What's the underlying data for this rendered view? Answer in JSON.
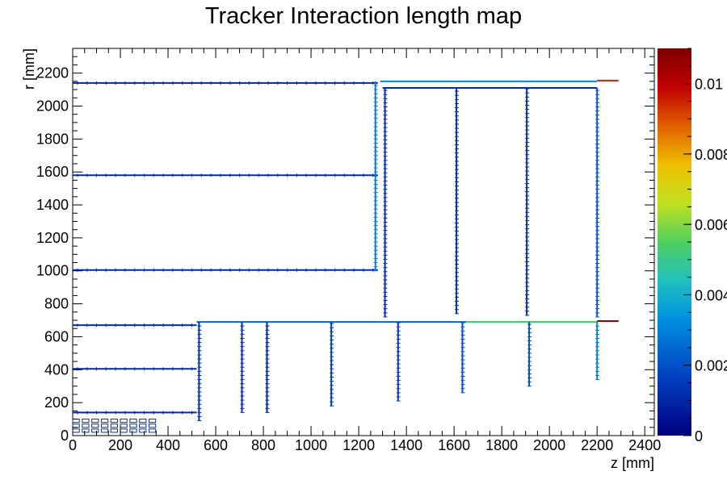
{
  "chart_data": {
    "type": "heatmap",
    "title": "Tracker Interaction length map",
    "xlabel": "z [mm]",
    "ylabel": "r [mm]",
    "xlim": [
      0,
      2440
    ],
    "ylim": [
      0,
      2350
    ],
    "x_ticks": [
      "0",
      "200",
      "400",
      "600",
      "800",
      "1000",
      "1200",
      "1400",
      "1600",
      "1800",
      "2000",
      "2200",
      "2400"
    ],
    "y_ticks": [
      "0",
      "200",
      "400",
      "600",
      "800",
      "1000",
      "1200",
      "1400",
      "1600",
      "1800",
      "2000",
      "2200"
    ],
    "colorbar": {
      "range": [
        0,
        0.011
      ],
      "tick_labels": [
        "0",
        "0.002",
        "0.004",
        "0.006",
        "0.008",
        "0.01"
      ],
      "tick_values": [
        0,
        0.002,
        0.004,
        0.006,
        0.008,
        0.01
      ],
      "colormap": "rainbow (dark blue to dark red)"
    },
    "structures": {
      "barrel_layers": [
        {
          "z": [
            0,
            1280
          ],
          "r": 2140,
          "value": 0.001
        },
        {
          "z": [
            0,
            1280
          ],
          "r": 1580,
          "value": 0.0012
        },
        {
          "z": [
            0,
            1280
          ],
          "r": 1005,
          "value": 0.001
        },
        {
          "z": [
            0,
            520
          ],
          "r": 670,
          "value": 0.0012
        },
        {
          "z": [
            0,
            520
          ],
          "r": 405,
          "value": 0.001
        },
        {
          "z": [
            0,
            520
          ],
          "r": 140,
          "value": 0.001
        }
      ],
      "outer_support": [
        {
          "z": [
            1290,
            2200
          ],
          "r": 2150,
          "value": 0.0032
        },
        {
          "z": [
            1300,
            2200
          ],
          "r": 2110,
          "value": 0.001
        },
        {
          "z": [
            2200,
            2290
          ],
          "r": 2155,
          "value": 0.0095
        },
        {
          "z": [
            520,
            2200
          ],
          "r": 690,
          "value": 0.0025
        },
        {
          "z": [
            1650,
            2200
          ],
          "r": 690,
          "value": 0.0055
        },
        {
          "z": [
            2200,
            2290
          ],
          "r": 695,
          "value": 0.0105
        }
      ],
      "endcap_disks": [
        {
          "z": 1270,
          "r": [
            1000,
            2150
          ],
          "value": 0.003
        },
        {
          "z": 1310,
          "r": [
            720,
            2110
          ],
          "value": 0.0012
        },
        {
          "z": 1610,
          "r": [
            740,
            2110
          ],
          "value": 0.0012
        },
        {
          "z": 1905,
          "r": [
            730,
            2110
          ],
          "value": 0.0012
        },
        {
          "z": 2200,
          "r": [
            720,
            2110
          ],
          "value": 0.0022
        },
        {
          "z": 530,
          "r": [
            90,
            690
          ],
          "value": 0.0012
        },
        {
          "z": 710,
          "r": [
            140,
            690
          ],
          "value": 0.0012
        },
        {
          "z": 815,
          "r": [
            140,
            690
          ],
          "value": 0.001
        },
        {
          "z": 1085,
          "r": [
            180,
            690
          ],
          "value": 0.0015
        },
        {
          "z": 1365,
          "r": [
            210,
            690
          ],
          "value": 0.0015
        },
        {
          "z": 1635,
          "r": [
            260,
            690
          ],
          "value": 0.002
        },
        {
          "z": 1915,
          "r": [
            300,
            690
          ],
          "value": 0.002
        },
        {
          "z": 2200,
          "r": [
            340,
            690
          ],
          "value": 0.003
        }
      ],
      "inner_cluster": {
        "z": [
          0,
          320
        ],
        "r": [
          20,
          130
        ],
        "value": 0.0012
      }
    }
  }
}
